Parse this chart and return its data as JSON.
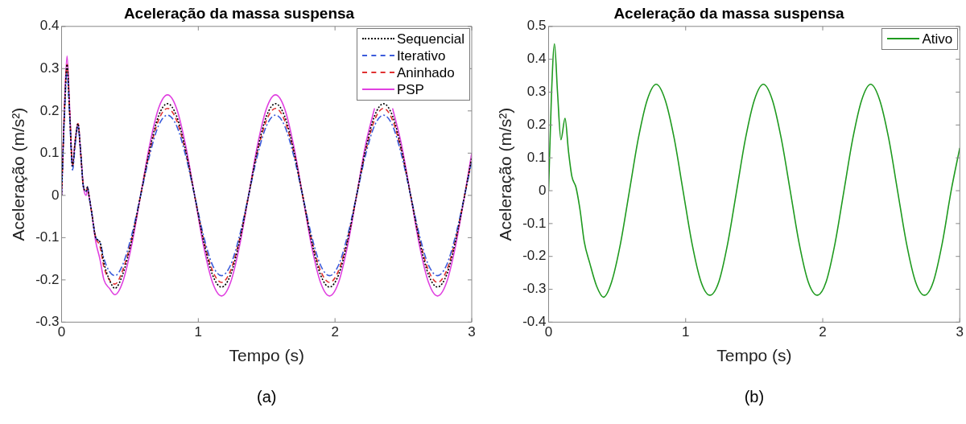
{
  "chart_data": [
    {
      "type": "line",
      "title": "Aceleração da massa suspensa",
      "xlabel": "Tempo (s)",
      "ylabel": "Aceleração (m/s²)",
      "annotations": [
        "(a)"
      ],
      "xlim": [
        0,
        3
      ],
      "xticks": [
        0,
        1,
        2,
        3
      ],
      "ylim": [
        -0.3,
        0.4
      ],
      "yticks": [
        -0.3,
        -0.2,
        -0.1,
        0,
        0.1,
        0.2,
        0.3,
        0.4
      ],
      "legend": "top right",
      "grid": false,
      "series": [
        {
          "name": "Sequencial",
          "color": "#000000",
          "line_style": "dotted",
          "x": [
            0,
            0.02,
            0.04,
            0.06,
            0.08,
            0.1,
            0.12,
            0.14,
            0.16,
            0.18,
            0.19,
            0.2,
            0.22,
            0.25,
            0.28,
            0.31,
            0.35,
            0.39,
            0.446,
            0.512,
            0.578,
            0.644,
            0.709,
            0.775,
            0.841,
            0.907,
            0.973,
            1.038,
            1.104,
            1.17,
            1.236,
            1.302,
            1.368,
            1.433,
            1.499,
            1.565,
            1.631,
            1.697,
            1.763,
            1.828,
            1.894,
            1.96,
            2.026,
            2.092,
            2.158,
            2.223,
            2.289,
            2.355,
            2.421,
            2.487,
            2.553,
            2.618,
            2.684,
            2.75,
            2.816,
            2.882,
            2.948,
            3.0
          ],
          "values": [
            0,
            0.19,
            0.31,
            0.19,
            0.07,
            0.13,
            0.17,
            0.1,
            0.02,
            0.01,
            0.02,
            0,
            -0.04,
            -0.1,
            -0.11,
            -0.16,
            -0.2,
            -0.22,
            -0.188,
            -0.108,
            0,
            0.108,
            0.188,
            0.217,
            0.188,
            0.108,
            0,
            -0.108,
            -0.188,
            -0.217,
            -0.188,
            -0.108,
            0,
            0.108,
            0.188,
            0.217,
            0.188,
            0.108,
            0,
            -0.108,
            -0.188,
            -0.217,
            -0.188,
            -0.108,
            0,
            0.108,
            0.188,
            0.217,
            0.188,
            0.108,
            0,
            -0.108,
            -0.188,
            -0.217,
            -0.188,
            -0.108,
            0,
            0.09
          ]
        },
        {
          "name": "Iterativo",
          "color": "#3b5bdb",
          "line_style": "dashdot",
          "x": [
            0,
            0.02,
            0.04,
            0.06,
            0.08,
            0.1,
            0.12,
            0.14,
            0.16,
            0.18,
            0.19,
            0.2,
            0.22,
            0.25,
            0.28,
            0.31,
            0.35,
            0.39,
            0.446,
            0.512,
            0.578,
            0.644,
            0.709,
            0.775,
            0.841,
            0.907,
            0.973,
            1.038,
            1.104,
            1.17,
            1.236,
            1.302,
            1.368,
            1.433,
            1.499,
            1.565,
            1.631,
            1.697,
            1.763,
            1.828,
            1.894,
            1.96,
            2.026,
            2.092,
            2.158,
            2.223,
            2.289,
            2.355,
            2.421,
            2.487,
            2.553,
            2.618,
            2.684,
            2.75,
            2.816,
            2.882,
            2.948,
            3.0
          ],
          "values": [
            0,
            0.18,
            0.29,
            0.18,
            0.06,
            0.12,
            0.165,
            0.1,
            0.02,
            0.01,
            0.02,
            0,
            -0.04,
            -0.1,
            -0.11,
            -0.15,
            -0.18,
            -0.19,
            -0.165,
            -0.095,
            0,
            0.095,
            0.165,
            0.19,
            0.165,
            0.095,
            0,
            -0.095,
            -0.165,
            -0.19,
            -0.165,
            -0.095,
            0,
            0.095,
            0.165,
            0.19,
            0.165,
            0.095,
            0,
            -0.095,
            -0.165,
            -0.19,
            -0.165,
            -0.095,
            0,
            0.095,
            0.165,
            0.19,
            0.165,
            0.095,
            0,
            -0.095,
            -0.165,
            -0.19,
            -0.165,
            -0.095,
            0,
            0.08
          ]
        },
        {
          "name": "Aninhado",
          "color": "#e03131",
          "line_style": "dashed",
          "x": [
            0,
            0.02,
            0.04,
            0.06,
            0.08,
            0.1,
            0.12,
            0.14,
            0.16,
            0.18,
            0.19,
            0.2,
            0.22,
            0.25,
            0.28,
            0.31,
            0.35,
            0.39,
            0.446,
            0.512,
            0.578,
            0.644,
            0.709,
            0.775,
            0.841,
            0.907,
            0.973,
            1.038,
            1.104,
            1.17,
            1.236,
            1.302,
            1.368,
            1.433,
            1.499,
            1.565,
            1.631,
            1.697,
            1.763,
            1.828,
            1.894,
            1.96,
            2.026,
            2.092,
            2.158,
            2.223,
            2.289,
            2.355,
            2.421,
            2.487,
            2.553,
            2.618,
            2.684,
            2.75,
            2.816,
            2.882,
            2.948,
            3.0
          ],
          "values": [
            0,
            0.19,
            0.31,
            0.19,
            0.07,
            0.13,
            0.17,
            0.1,
            0.02,
            0.01,
            0.02,
            0,
            -0.04,
            -0.1,
            -0.12,
            -0.17,
            -0.2,
            -0.21,
            -0.178,
            -0.103,
            0,
            0.103,
            0.178,
            0.206,
            0.178,
            0.103,
            0,
            -0.103,
            -0.178,
            -0.206,
            -0.178,
            -0.103,
            0,
            0.103,
            0.178,
            0.206,
            0.178,
            0.103,
            0,
            -0.103,
            -0.178,
            -0.206,
            -0.178,
            -0.103,
            0,
            0.103,
            0.178,
            0.206,
            0.178,
            0.103,
            0,
            -0.103,
            -0.178,
            -0.206,
            -0.178,
            -0.103,
            0,
            0.085
          ]
        },
        {
          "name": "PSP",
          "color": "#e040e0",
          "line_style": "solid",
          "x": [
            0,
            0.02,
            0.04,
            0.06,
            0.08,
            0.1,
            0.12,
            0.14,
            0.16,
            0.18,
            0.19,
            0.2,
            0.22,
            0.25,
            0.28,
            0.31,
            0.35,
            0.39,
            0.446,
            0.512,
            0.578,
            0.644,
            0.709,
            0.775,
            0.841,
            0.907,
            0.973,
            1.038,
            1.104,
            1.17,
            1.236,
            1.302,
            1.368,
            1.433,
            1.499,
            1.565,
            1.631,
            1.697,
            1.763,
            1.828,
            1.894,
            1.96,
            2.026,
            2.092,
            2.158,
            2.223,
            2.289,
            2.355,
            2.421,
            2.487,
            2.553,
            2.618,
            2.684,
            2.75,
            2.816,
            2.882,
            2.948,
            3.0
          ],
          "values": [
            0,
            0.2,
            0.33,
            0.2,
            0.07,
            0.13,
            0.17,
            0.1,
            0.02,
            0,
            0.015,
            0,
            -0.04,
            -0.11,
            -0.15,
            -0.2,
            -0.22,
            -0.235,
            -0.206,
            -0.119,
            0,
            0.119,
            0.206,
            0.238,
            0.206,
            0.119,
            0,
            -0.119,
            -0.206,
            -0.238,
            -0.206,
            -0.119,
            0,
            0.119,
            0.206,
            0.238,
            0.206,
            0.119,
            0,
            -0.119,
            -0.206,
            -0.238,
            -0.206,
            -0.119,
            0,
            0.119,
            0.206,
            null,
            0.206,
            0.119,
            0,
            -0.119,
            -0.206,
            -0.238,
            -0.206,
            -0.119,
            0,
            0.1
          ]
        }
      ]
    },
    {
      "type": "line",
      "title": "Aceleração da massa suspensa",
      "xlabel": "Tempo (s)",
      "ylabel": "Aceleração (m/s²)",
      "annotations": [
        "(b)"
      ],
      "xlim": [
        0,
        3
      ],
      "xticks": [
        0,
        1,
        2,
        3
      ],
      "ylim": [
        -0.4,
        0.5
      ],
      "yticks": [
        -0.4,
        -0.3,
        -0.2,
        -0.1,
        0,
        0.1,
        0.2,
        0.3,
        0.4,
        0.5
      ],
      "legend": "top right",
      "grid": false,
      "series": [
        {
          "name": "Ativo",
          "color": "#1f9a1f",
          "line_style": "solid",
          "x": [
            0,
            0.02,
            0.043,
            0.065,
            0.09,
            0.12,
            0.145,
            0.17,
            0.2,
            0.23,
            0.26,
            0.3,
            0.35,
            0.4,
            0.46,
            0.525,
            0.59,
            0.655,
            0.72,
            0.785,
            0.85,
            0.916,
            0.981,
            1.046,
            1.112,
            1.177,
            1.242,
            1.307,
            1.372,
            1.437,
            1.502,
            1.567,
            1.632,
            1.697,
            1.763,
            1.828,
            1.894,
            1.96,
            2.025,
            2.09,
            2.155,
            2.22,
            2.285,
            2.35,
            2.415,
            2.481,
            2.546,
            2.611,
            2.677,
            2.742,
            2.807,
            2.872,
            2.937,
            3.0
          ],
          "values": [
            0,
            0.28,
            0.447,
            0.3,
            0.155,
            0.22,
            0.12,
            0.043,
            0.01,
            -0.06,
            -0.155,
            -0.22,
            -0.29,
            -0.324,
            -0.277,
            -0.16,
            0,
            0.16,
            0.277,
            0.324,
            0.277,
            0.16,
            0,
            -0.16,
            -0.277,
            -0.318,
            -0.277,
            -0.16,
            0,
            0.16,
            0.277,
            0.324,
            0.277,
            0.16,
            0,
            -0.16,
            -0.277,
            -0.318,
            -0.277,
            -0.16,
            0,
            0.16,
            0.277,
            0.324,
            0.277,
            0.16,
            0,
            -0.16,
            -0.277,
            -0.318,
            -0.277,
            -0.16,
            0,
            0.13
          ]
        }
      ]
    }
  ]
}
